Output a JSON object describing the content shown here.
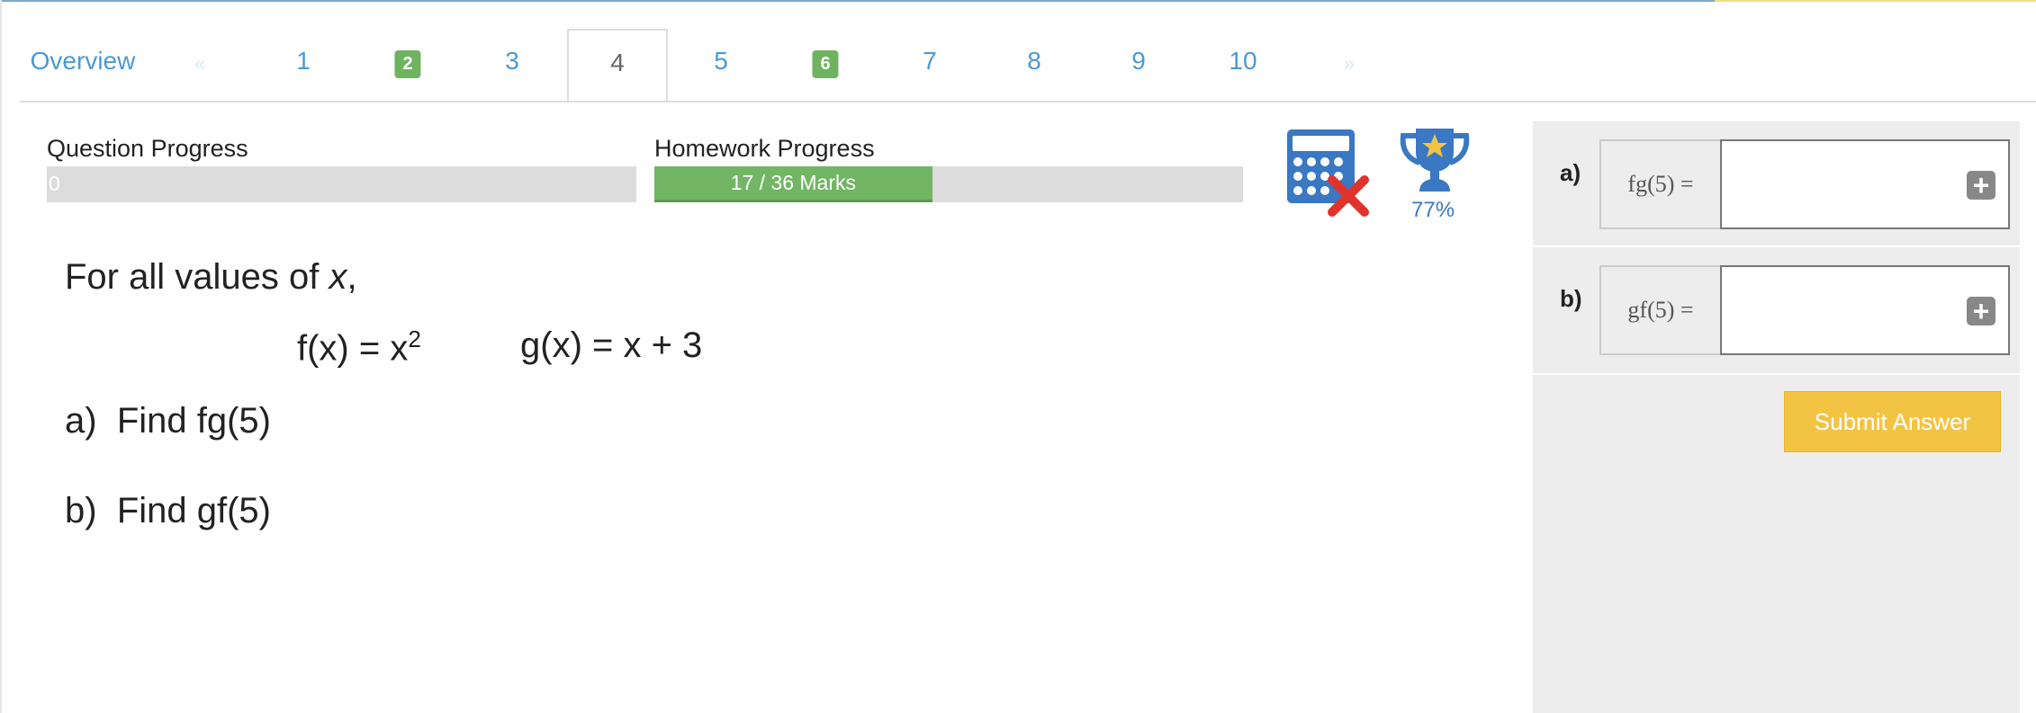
{
  "tabs": {
    "overview": "Overview",
    "prev": "«",
    "next": "»",
    "items": [
      {
        "label": "1",
        "state": "normal"
      },
      {
        "label": "2",
        "state": "done"
      },
      {
        "label": "3",
        "state": "normal"
      },
      {
        "label": "4",
        "state": "active"
      },
      {
        "label": "5",
        "state": "normal"
      },
      {
        "label": "6",
        "state": "done"
      },
      {
        "label": "7",
        "state": "normal"
      },
      {
        "label": "8",
        "state": "normal"
      },
      {
        "label": "9",
        "state": "normal"
      },
      {
        "label": "10",
        "state": "normal"
      }
    ]
  },
  "progress": {
    "question_label": "Question Progress",
    "question_value": "0",
    "question_fraction": 0,
    "homework_label": "Homework Progress",
    "homework_text": "17 / 36 Marks",
    "homework_fraction": 0.472
  },
  "tools": {
    "calculator_icon": "calculator-not-allowed-icon",
    "trophy_icon": "trophy-star-icon",
    "score": "77%"
  },
  "question": {
    "intro_pre": "For all values of ",
    "intro_var": "x",
    "intro_post": ",",
    "f_def": "f(x) = x",
    "f_exp": "2",
    "g_def": "g(x) = x + 3",
    "parts": [
      {
        "letter": "a)",
        "text": "Find fg(5)"
      },
      {
        "letter": "b)",
        "text": "Find gf(5)"
      }
    ]
  },
  "answers": [
    {
      "letter": "a)",
      "label": "fg(5) =",
      "value": ""
    },
    {
      "letter": "b)",
      "label": "gf(5) =",
      "value": ""
    }
  ],
  "submit_label": "Submit Answer",
  "colors": {
    "accent": "#4a9ad6",
    "done": "#6eb35f",
    "submit": "#f3c343",
    "icon": "#3a78c3"
  }
}
